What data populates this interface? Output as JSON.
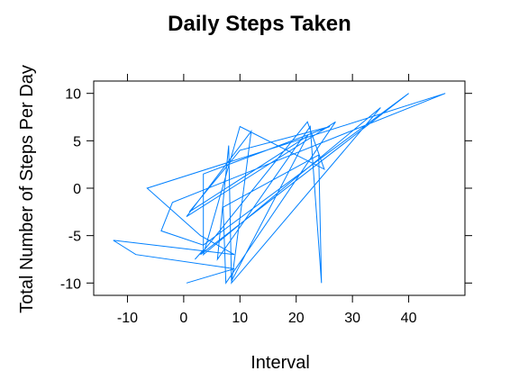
{
  "chart_data": {
    "type": "line",
    "title": "Daily Steps Taken",
    "xlabel": "Interval",
    "ylabel": "Total Number of Steps Per Day",
    "xlim": [
      -16,
      50
    ],
    "ylim": [
      -11.3,
      11.3
    ],
    "xticks": [
      -10,
      0,
      10,
      20,
      30,
      40
    ],
    "yticks": [
      -10,
      -5,
      0,
      5,
      10
    ],
    "grid": false,
    "series_color": "#0080ff",
    "x": [
      0.5,
      9,
      -8.5,
      -12.5,
      9,
      3,
      -6.5,
      46.5,
      -2,
      -4,
      3.5,
      40,
      3,
      22,
      25,
      10,
      3.5,
      35,
      8.5,
      12,
      0.5,
      27,
      7.5,
      7,
      24,
      24.5,
      22.5,
      6,
      8,
      8.5,
      22,
      1,
      10,
      26,
      3.5,
      3.5,
      2
    ],
    "y": [
      -10,
      -8.5,
      -7,
      -5.5,
      -7,
      -5,
      0,
      10,
      -1.5,
      -4.5,
      -6,
      10,
      -7,
      7,
      2,
      6.5,
      -7,
      8.5,
      -10,
      6,
      -3,
      7,
      -10,
      -2,
      3.5,
      -10,
      6.5,
      -7.5,
      4.5,
      -9.8,
      5.5,
      -2.5,
      4,
      6.5,
      1.5,
      -6.5,
      -7.5
    ]
  }
}
